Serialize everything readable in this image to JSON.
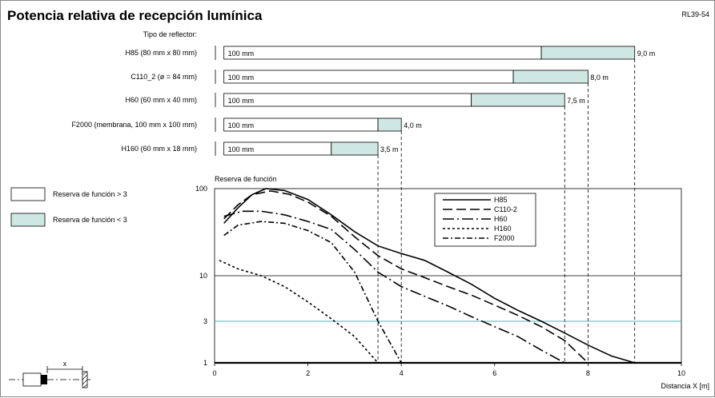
{
  "page": {
    "title": "Potencia relativa de recepción lumínica",
    "code": "RL39-54",
    "reflector_header": "Tipo de reflector:"
  },
  "colors": {
    "reserve_high_fill": "#ffffff",
    "reserve_low_fill": "#cfe7e3",
    "line_color": "#000000",
    "cyan_gridline": "#57b3b7"
  },
  "range_bars": [
    {
      "label": "H85 (80 mm x 80 mm)",
      "start": "100 mm",
      "reserve_end_m": 7.0,
      "max_m": 9.0,
      "max_label": "9,0 m"
    },
    {
      "label": "C110_2 (ø = 84 mm)",
      "start": "100 mm",
      "reserve_end_m": 6.4,
      "max_m": 8.0,
      "max_label": "8,0 m"
    },
    {
      "label": "H60 (60 mm x 40 mm)",
      "start": "100 mm",
      "reserve_end_m": 5.5,
      "max_m": 7.5,
      "max_label": "7,5 m"
    },
    {
      "label": "F2000 (membrana, 100 mm x 100 mm)",
      "start": "100 mm",
      "reserve_end_m": 3.5,
      "max_m": 4.0,
      "max_label": "4,0 m"
    },
    {
      "label": "H160 (60 mm x 18 mm)",
      "start": "100 mm",
      "reserve_end_m": 2.5,
      "max_m": 3.5,
      "max_label": "3,5 m"
    }
  ],
  "legend_boxes": [
    {
      "label": "Reserva de función > 3",
      "fill": "#ffffff"
    },
    {
      "label": "Reserva de función < 3",
      "fill": "#cfe7e3"
    }
  ],
  "diagram": {
    "x_marker": "x"
  },
  "chart_data": {
    "type": "line",
    "ylabel": "Reserva de función",
    "xlabel": "Distancia X [m]",
    "xlim": [
      0,
      10
    ],
    "ylim": [
      1,
      100
    ],
    "y_scale": "log",
    "x_ticks": [
      "0",
      "2",
      "4",
      "6",
      "8",
      "10"
    ],
    "y_ticks": [
      {
        "value": 100,
        "label": "100"
      },
      {
        "value": 10,
        "label": "10"
      },
      {
        "value": 3,
        "label": "3"
      },
      {
        "value": 1,
        "label": "1"
      }
    ],
    "legend_position": "upper-right",
    "series": [
      {
        "name": "H85",
        "dash": "solid",
        "points": [
          [
            0.2,
            40
          ],
          [
            0.5,
            60
          ],
          [
            0.8,
            85
          ],
          [
            1.1,
            100
          ],
          [
            1.5,
            95
          ],
          [
            2.0,
            75
          ],
          [
            2.5,
            50
          ],
          [
            3.0,
            32
          ],
          [
            3.5,
            22
          ],
          [
            4.0,
            18
          ],
          [
            4.5,
            15
          ],
          [
            5.0,
            11
          ],
          [
            5.5,
            8
          ],
          [
            6.0,
            5.5
          ],
          [
            6.5,
            4
          ],
          [
            7.0,
            3
          ],
          [
            7.5,
            2.2
          ],
          [
            8.0,
            1.6
          ],
          [
            8.5,
            1.2
          ],
          [
            9.0,
            1.0
          ]
        ]
      },
      {
        "name": "C110-2",
        "dash": "long-dash",
        "points": [
          [
            0.2,
            45
          ],
          [
            0.5,
            65
          ],
          [
            0.8,
            85
          ],
          [
            1.2,
            94
          ],
          [
            1.6,
            86
          ],
          [
            2.0,
            70
          ],
          [
            2.5,
            48
          ],
          [
            3.0,
            28
          ],
          [
            3.5,
            17
          ],
          [
            4.0,
            12
          ],
          [
            4.5,
            9.5
          ],
          [
            5.0,
            7.5
          ],
          [
            5.5,
            6
          ],
          [
            6.0,
            4.6
          ],
          [
            6.5,
            3.5
          ],
          [
            7.0,
            2.6
          ],
          [
            7.5,
            1.8
          ],
          [
            8.0,
            1.0
          ]
        ]
      },
      {
        "name": "H60",
        "dash": "long-dash-dot",
        "points": [
          [
            0.2,
            48
          ],
          [
            0.6,
            55
          ],
          [
            1.0,
            55
          ],
          [
            1.5,
            50
          ],
          [
            2.0,
            42
          ],
          [
            2.5,
            34
          ],
          [
            3.0,
            20
          ],
          [
            3.5,
            11
          ],
          [
            4.0,
            7.5
          ],
          [
            4.5,
            5.8
          ],
          [
            5.0,
            4.5
          ],
          [
            5.5,
            3.4
          ],
          [
            6.0,
            2.6
          ],
          [
            6.5,
            2.0
          ],
          [
            7.0,
            1.4
          ],
          [
            7.5,
            1.0
          ]
        ]
      },
      {
        "name": "H160",
        "dash": "short-dash",
        "points": [
          [
            0.1,
            15
          ],
          [
            0.5,
            12
          ],
          [
            1.0,
            10
          ],
          [
            1.5,
            7.5
          ],
          [
            2.0,
            5
          ],
          [
            2.5,
            3.2
          ],
          [
            3.0,
            2.0
          ],
          [
            3.5,
            1.0
          ]
        ]
      },
      {
        "name": "F2000",
        "dash": "dash-dot",
        "points": [
          [
            0.2,
            29
          ],
          [
            0.5,
            38
          ],
          [
            1.0,
            42
          ],
          [
            1.5,
            40
          ],
          [
            2.0,
            33
          ],
          [
            2.5,
            24
          ],
          [
            3.0,
            11
          ],
          [
            3.5,
            3
          ],
          [
            4.0,
            1.0
          ]
        ]
      }
    ]
  }
}
